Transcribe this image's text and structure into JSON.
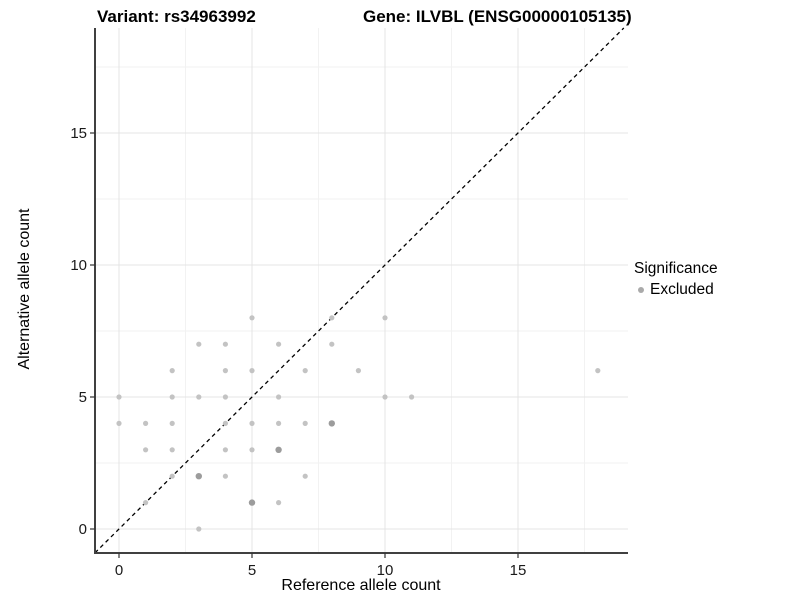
{
  "titles": {
    "left": "Variant: rs34963992",
    "right": "Gene: ILVBL (ENSG00000105135)"
  },
  "chart_data": {
    "type": "scatter",
    "xlabel": "Reference allele count",
    "ylabel": "Alternative allele count",
    "x_ticks": [
      0,
      5,
      10,
      15
    ],
    "y_ticks": [
      0,
      5,
      10,
      15
    ],
    "x_ticks_minor": [
      2.5,
      7.5,
      12.5,
      17.5
    ],
    "y_ticks_minor": [
      2.5,
      7.5,
      12.5,
      17.5
    ],
    "xlim": [
      -0.9,
      19.1
    ],
    "ylim": [
      -0.9,
      19.0
    ],
    "grid": "on",
    "identity_line": {
      "slope": 1,
      "intercept": 0,
      "style": "dashed",
      "color": "#000000"
    },
    "legend": {
      "title": "Significance",
      "position": "right",
      "items": [
        {
          "label": "Excluded",
          "color": "#aaaaaa"
        }
      ]
    },
    "series": [
      {
        "name": "Excluded",
        "color_light": "#c3c3c3",
        "color_dark": "#9c9c9c",
        "points": [
          {
            "x": 0,
            "y": 4
          },
          {
            "x": 0,
            "y": 5
          },
          {
            "x": 1,
            "y": 1
          },
          {
            "x": 1,
            "y": 3
          },
          {
            "x": 1,
            "y": 4
          },
          {
            "x": 2,
            "y": 2
          },
          {
            "x": 2,
            "y": 3
          },
          {
            "x": 2,
            "y": 4
          },
          {
            "x": 2,
            "y": 5
          },
          {
            "x": 2,
            "y": 6
          },
          {
            "x": 3,
            "y": 0
          },
          {
            "x": 3,
            "y": 2,
            "dark": true
          },
          {
            "x": 3,
            "y": 5
          },
          {
            "x": 3,
            "y": 7
          },
          {
            "x": 4,
            "y": 2
          },
          {
            "x": 4,
            "y": 3
          },
          {
            "x": 4,
            "y": 4
          },
          {
            "x": 4,
            "y": 5
          },
          {
            "x": 4,
            "y": 6
          },
          {
            "x": 4,
            "y": 7
          },
          {
            "x": 5,
            "y": 1,
            "dark": true
          },
          {
            "x": 5,
            "y": 3
          },
          {
            "x": 5,
            "y": 4
          },
          {
            "x": 5,
            "y": 6
          },
          {
            "x": 5,
            "y": 8
          },
          {
            "x": 6,
            "y": 1
          },
          {
            "x": 6,
            "y": 3,
            "dark": true
          },
          {
            "x": 6,
            "y": 4
          },
          {
            "x": 6,
            "y": 5
          },
          {
            "x": 6,
            "y": 7
          },
          {
            "x": 7,
            "y": 2
          },
          {
            "x": 7,
            "y": 4
          },
          {
            "x": 7,
            "y": 6
          },
          {
            "x": 8,
            "y": 4,
            "dark": true
          },
          {
            "x": 8,
            "y": 7
          },
          {
            "x": 8,
            "y": 8
          },
          {
            "x": 9,
            "y": 6
          },
          {
            "x": 10,
            "y": 5
          },
          {
            "x": 10,
            "y": 8
          },
          {
            "x": 11,
            "y": 5
          },
          {
            "x": 18,
            "y": 6
          }
        ]
      }
    ],
    "style": {
      "grid_major": "#e4e4e4",
      "grid_minor": "#f2f2f2",
      "axis_line": "#404040",
      "tick_mark": "#333333",
      "tick_label_color": "#1a1a1a"
    }
  }
}
